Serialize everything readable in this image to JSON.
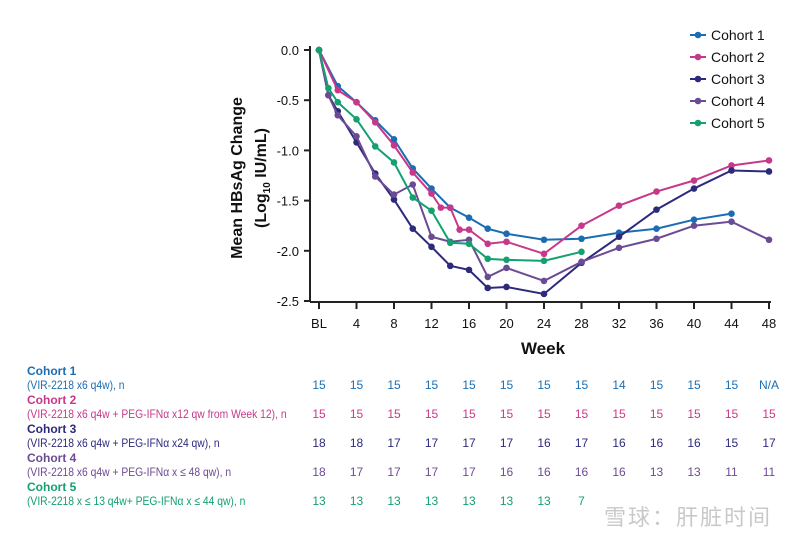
{
  "chart_data": {
    "type": "line",
    "title": "",
    "xlabel": "Week",
    "ylabel_line1": "Mean HBsAg Change",
    "ylabel_line2_pre": "(Log",
    "ylabel_sub": "10",
    "ylabel_line2_post": " IU/mL)",
    "xlim": [
      0,
      48
    ],
    "ylim": [
      -2.5,
      0.0
    ],
    "x_ticks": [
      0,
      4,
      8,
      12,
      16,
      20,
      24,
      28,
      32,
      36,
      40,
      44,
      48
    ],
    "x_tick_labels": [
      "BL",
      "4",
      "8",
      "12",
      "16",
      "20",
      "24",
      "28",
      "32",
      "36",
      "40",
      "44",
      "48"
    ],
    "y_ticks": [
      0.0,
      -0.5,
      -1.0,
      -1.5,
      -2.0,
      -2.5
    ],
    "y_tick_labels": [
      "0.0",
      "-0.5",
      "-1.0",
      "-1.5",
      "-2.0",
      "-2.5"
    ],
    "grid": false,
    "legend_position": "top-right",
    "series": [
      {
        "name": "Cohort 1",
        "color": "#1b6db3",
        "x": [
          0,
          2,
          4,
          6,
          8,
          10,
          12,
          14,
          16,
          18,
          20,
          24,
          28,
          32,
          36,
          40,
          44
        ],
        "y": [
          0,
          -0.36,
          -0.52,
          -0.7,
          -0.89,
          -1.18,
          -1.38,
          -1.57,
          -1.67,
          -1.78,
          -1.83,
          -1.89,
          -1.88,
          -1.82,
          -1.78,
          -1.69,
          -1.63
        ]
      },
      {
        "name": "Cohort 2",
        "color": "#c8388a",
        "x": [
          0,
          2,
          4,
          6,
          8,
          10,
          12,
          13,
          14,
          15,
          16,
          18,
          20,
          24,
          28,
          32,
          36,
          40,
          44,
          48
        ],
        "y": [
          0,
          -0.4,
          -0.52,
          -0.72,
          -0.95,
          -1.22,
          -1.43,
          -1.57,
          -1.57,
          -1.79,
          -1.79,
          -1.93,
          -1.91,
          -2.03,
          -1.75,
          -1.55,
          -1.41,
          -1.3,
          -1.15,
          -1.1
        ]
      },
      {
        "name": "Cohort 3",
        "color": "#2d2a7c",
        "x": [
          0,
          1,
          2,
          4,
          6,
          8,
          10,
          12,
          14,
          16,
          18,
          20,
          24,
          28,
          32,
          36,
          40,
          44,
          48
        ],
        "y": [
          0,
          -0.45,
          -0.61,
          -0.92,
          -1.23,
          -1.49,
          -1.78,
          -1.96,
          -2.15,
          -2.19,
          -2.37,
          -2.36,
          -2.43,
          -2.12,
          -1.86,
          -1.59,
          -1.38,
          -1.2,
          -1.21
        ]
      },
      {
        "name": "Cohort 4",
        "color": "#6b4c94",
        "x": [
          0,
          1,
          2,
          4,
          6,
          8,
          10,
          12,
          14,
          16,
          18,
          20,
          24,
          28,
          32,
          36,
          40,
          44,
          48
        ],
        "y": [
          0,
          -0.45,
          -0.65,
          -0.86,
          -1.26,
          -1.44,
          -1.34,
          -1.86,
          -1.91,
          -1.89,
          -2.26,
          -2.17,
          -2.3,
          -2.11,
          -1.97,
          -1.88,
          -1.75,
          -1.71,
          -1.89
        ]
      },
      {
        "name": "Cohort 5",
        "color": "#14a070",
        "x": [
          0,
          1,
          2,
          4,
          6,
          8,
          10,
          12,
          14,
          16,
          18,
          20,
          24,
          28
        ],
        "y": [
          0,
          -0.38,
          -0.52,
          -0.69,
          -0.96,
          -1.12,
          -1.47,
          -1.6,
          -1.92,
          -1.93,
          -2.08,
          -2.09,
          -2.1,
          -2.01
        ]
      }
    ]
  },
  "n_table": {
    "rows": [
      {
        "name": "Cohort 1",
        "desc": "(VIR-2218 x6 q4w), n",
        "color": "#1b6db3",
        "values": [
          "15",
          "15",
          "15",
          "15",
          "15",
          "15",
          "15",
          "15",
          "14",
          "15",
          "15",
          "15",
          "N/A"
        ]
      },
      {
        "name": "Cohort 2",
        "desc": "(VIR-2218 x6 q4w + PEG-IFNα x12 qw from Week 12), n",
        "color": "#c8388a",
        "values": [
          "15",
          "15",
          "15",
          "15",
          "15",
          "15",
          "15",
          "15",
          "15",
          "15",
          "15",
          "15",
          "15"
        ]
      },
      {
        "name": "Cohort 3",
        "desc": "(VIR-2218 x6 q4w + PEG-IFNα x24 qw), n",
        "color": "#2d2a7c",
        "values": [
          "18",
          "18",
          "17",
          "17",
          "17",
          "17",
          "16",
          "17",
          "16",
          "16",
          "16",
          "15",
          "17"
        ]
      },
      {
        "name": "Cohort 4",
        "desc": "(VIR-2218 x6 q4w + PEG-IFNα x ≤ 48 qw), n",
        "color": "#6b4c94",
        "values": [
          "18",
          "17",
          "17",
          "17",
          "17",
          "16",
          "16",
          "16",
          "16",
          "13",
          "13",
          "11",
          "11"
        ]
      },
      {
        "name": "Cohort 5",
        "desc": "(VIR-2218 x ≤ 13 q4w+ PEG-IFNα x ≤ 44 qw), n",
        "color": "#14a070",
        "values": [
          "13",
          "13",
          "13",
          "13",
          "13",
          "13",
          "13",
          "7"
        ]
      }
    ]
  },
  "watermark": "雪球：肝脏时间"
}
